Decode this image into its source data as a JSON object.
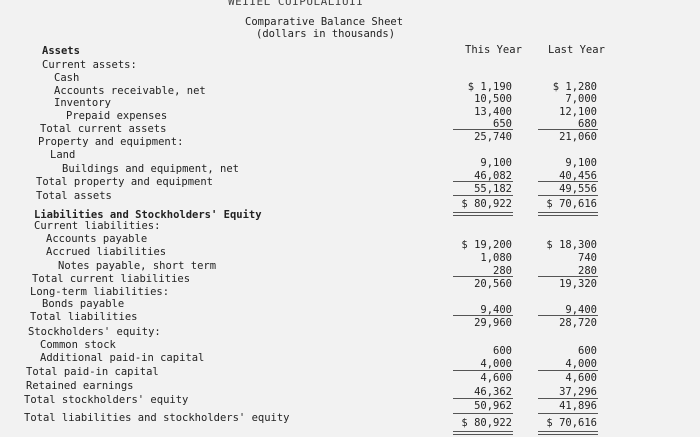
{
  "header": {
    "company": "WEIIEL CUIPULALIUII",
    "title": "Comparative Balance Sheet",
    "subtitle": "(dollars in thousands)"
  },
  "columns": {
    "this_year": "This Year",
    "last_year": "Last Year"
  },
  "rows": [
    {
      "label": "Assets",
      "this": "",
      "last": ""
    },
    {
      "label": "Current assets:",
      "this": "",
      "last": ""
    },
    {
      "label": "Cash",
      "this": "$ 1,190",
      "last": "$ 1,280"
    },
    {
      "label": "Accounts receivable, net",
      "this": "10,500",
      "last": "7,000"
    },
    {
      "label": "Inventory",
      "this": "13,400",
      "last": "12,100"
    },
    {
      "label": "Prepaid expenses",
      "this": "650",
      "last": "680"
    },
    {
      "label": "Total current assets",
      "this": "25,740",
      "last": "21,060"
    },
    {
      "label": "Property and equipment:",
      "this": "",
      "last": ""
    },
    {
      "label": "Land",
      "this": "9,100",
      "last": "9,100"
    },
    {
      "label": "Buildings and equipment, net",
      "this": "46,082",
      "last": "40,456"
    },
    {
      "label": "Total property and equipment",
      "this": "55,182",
      "last": "49,556"
    },
    {
      "label": "Total assets",
      "this": "$ 80,922",
      "last": "$ 70,616"
    },
    {
      "label": "Liabilities and Stockholders' Equity",
      "this": "",
      "last": ""
    },
    {
      "label": "Current liabilities:",
      "this": "",
      "last": ""
    },
    {
      "label": "Accounts payable",
      "this": "$ 19,200",
      "last": "$ 18,300"
    },
    {
      "label": "Accrued liabilities",
      "this": "1,080",
      "last": "740"
    },
    {
      "label": "Notes payable, short term",
      "this": "280",
      "last": "280"
    },
    {
      "label": "Total current liabilities",
      "this": "20,560",
      "last": "19,320"
    },
    {
      "label": "Long-term liabilities:",
      "this": "",
      "last": ""
    },
    {
      "label": "Bonds payable",
      "this": "9,400",
      "last": "9,400"
    },
    {
      "label": "Total liabilities",
      "this": "29,960",
      "last": "28,720"
    },
    {
      "label": "Stockholders' equity:",
      "this": "",
      "last": ""
    },
    {
      "label": "Common stock",
      "this": "600",
      "last": "600"
    },
    {
      "label": "Additional paid-in capital",
      "this": "4,000",
      "last": "4,000"
    },
    {
      "label": "Total paid-in capital",
      "this": "4,600",
      "last": "4,600"
    },
    {
      "label": "Retained earnings",
      "this": "46,362",
      "last": "37,296"
    },
    {
      "label": "Total stockholders' equity",
      "this": "50,962",
      "last": "41,896"
    },
    {
      "label": "Total liabilities and stockholders' equity",
      "this": "$ 80,922",
      "last": "$ 70,616"
    }
  ]
}
